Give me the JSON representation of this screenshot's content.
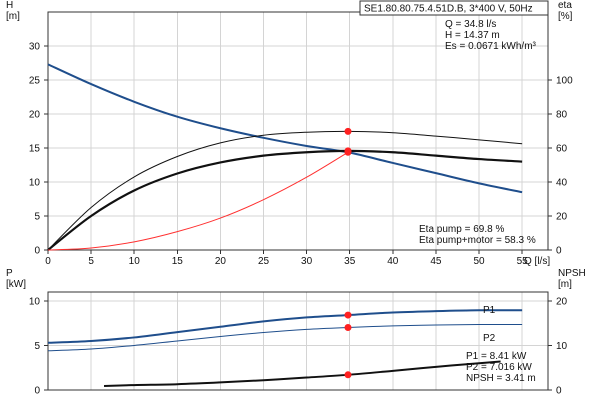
{
  "chart_data": [
    {
      "id": "hq",
      "type": "line",
      "title": "SE1.80.80.75.4.51D.B, 3*400 V, 50Hz",
      "xlabel": "Q [l/s]",
      "ylabel_left": "H\n[m]",
      "ylabel_right": "eta\n[%]",
      "xlim": [
        0,
        58
      ],
      "ylim_left": [
        0,
        35
      ],
      "ylim_right": [
        0,
        140
      ],
      "xticks": [
        0,
        5,
        10,
        15,
        20,
        25,
        30,
        35,
        40,
        45,
        50,
        55
      ],
      "yticks_left": [
        0,
        5,
        10,
        15,
        20,
        25,
        30
      ],
      "yticks_right": [
        0,
        20,
        40,
        60,
        80,
        100
      ],
      "grid": true,
      "duty_info": [
        "Q = 34.8 l/s",
        "H = 14.37 m",
        "Es = 0.0671 kWh/m³"
      ],
      "eff_info": [
        "Eta pump = 69.8 %",
        "Eta pump+motor = 58.3 %"
      ],
      "series": [
        {
          "key": "head",
          "axis": "left",
          "color": "#1f4e8c",
          "width": 2,
          "x": [
            0,
            5,
            10,
            15,
            20,
            25,
            30,
            34.8,
            40,
            45,
            50,
            55
          ],
          "y": [
            27.3,
            24.4,
            21.8,
            19.6,
            17.9,
            16.5,
            15.3,
            14.37,
            12.8,
            11.3,
            9.8,
            8.5
          ]
        },
        {
          "key": "eta_pump",
          "axis": "right",
          "color": "#111111",
          "width": 1,
          "x": [
            0,
            5,
            10,
            15,
            20,
            25,
            30,
            34.8,
            40,
            45,
            50,
            55
          ],
          "y": [
            0,
            25,
            43,
            55,
            63,
            67.5,
            69.3,
            69.8,
            69,
            67,
            64.8,
            62.5
          ]
        },
        {
          "key": "eta_total",
          "axis": "right",
          "color": "#111111",
          "width": 2.2,
          "x": [
            0,
            5,
            10,
            15,
            20,
            25,
            30,
            34.8,
            40,
            45,
            50,
            55
          ],
          "y": [
            0,
            20,
            35,
            45,
            51.5,
            55.5,
            57.5,
            58.3,
            57.5,
            55.5,
            53.5,
            52
          ]
        },
        {
          "key": "system",
          "axis": "left",
          "color": "#ff3030",
          "width": 1,
          "x": [
            0,
            5,
            10,
            15,
            20,
            25,
            30,
            34.8
          ],
          "y": [
            0,
            0.3,
            1.2,
            2.7,
            4.7,
            7.4,
            10.7,
            14.37
          ]
        }
      ],
      "duty_points": [
        {
          "axis": "left",
          "x": 34.8,
          "y": 14.37
        },
        {
          "axis": "right",
          "x": 34.8,
          "y": 69.8
        },
        {
          "axis": "right",
          "x": 34.8,
          "y": 58.3
        }
      ]
    },
    {
      "id": "power",
      "type": "line",
      "xlim": [
        0,
        58
      ],
      "ylabel_left": "P\n[kW]",
      "ylabel_right": "NPSH\n[m]",
      "ylim_left": [
        0,
        11
      ],
      "ylim_right": [
        0,
        22
      ],
      "yticks_left": [
        0,
        5,
        10
      ],
      "yticks_right": [
        0,
        10,
        20
      ],
      "grid": true,
      "info": [
        "P1 = 8.41 kW",
        "P2 = 7.016 kW",
        "NPSH = 3.41 m"
      ],
      "series": [
        {
          "key": "p1",
          "name": "P1",
          "axis": "left",
          "color": "#1f4e8c",
          "width": 2,
          "x": [
            0,
            5,
            10,
            15,
            20,
            25,
            30,
            34.8,
            40,
            45,
            50,
            55
          ],
          "y": [
            5.3,
            5.5,
            5.9,
            6.5,
            7.1,
            7.7,
            8.15,
            8.41,
            8.7,
            8.85,
            8.95,
            8.95
          ]
        },
        {
          "key": "p2",
          "name": "P2",
          "axis": "left",
          "color": "#1f4e8c",
          "width": 1,
          "x": [
            0,
            5,
            10,
            15,
            20,
            25,
            30,
            34.8,
            40,
            45,
            50,
            55
          ],
          "y": [
            4.4,
            4.6,
            5.0,
            5.5,
            6.0,
            6.45,
            6.8,
            7.016,
            7.2,
            7.3,
            7.35,
            7.35
          ]
        },
        {
          "key": "npsh",
          "axis": "right",
          "color": "#111111",
          "width": 2,
          "x": [
            6.5,
            10,
            15,
            20,
            25,
            30,
            34.8,
            40,
            45,
            50,
            52.5
          ],
          "y": [
            0.9,
            1.1,
            1.3,
            1.7,
            2.2,
            2.8,
            3.41,
            4.3,
            5.2,
            6.0,
            6.4
          ]
        }
      ],
      "duty_points": [
        {
          "axis": "left",
          "x": 34.8,
          "y": 8.41
        },
        {
          "axis": "left",
          "x": 34.8,
          "y": 7.016
        },
        {
          "axis": "right",
          "x": 34.8,
          "y": 3.41
        }
      ]
    }
  ]
}
